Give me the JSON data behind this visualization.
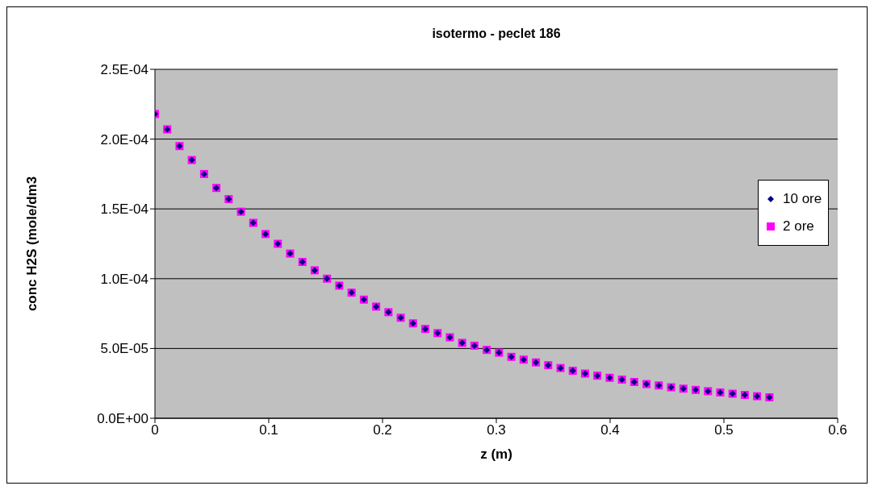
{
  "chart_data": {
    "type": "scatter",
    "title": "isotermo - peclet 186",
    "xlabel": "z (m)",
    "ylabel": "conc H2S (mole/dm3",
    "x": [
      0,
      0.0108,
      0.0216,
      0.0324,
      0.0432,
      0.054,
      0.0648,
      0.0756,
      0.0864,
      0.0972,
      0.108,
      0.1188,
      0.1296,
      0.1404,
      0.1512,
      0.162,
      0.1728,
      0.1836,
      0.1944,
      0.2052,
      0.216,
      0.2268,
      0.2376,
      0.2484,
      0.2592,
      0.27,
      0.2808,
      0.2916,
      0.3024,
      0.3132,
      0.324,
      0.3348,
      0.3456,
      0.3564,
      0.3672,
      0.378,
      0.3888,
      0.3996,
      0.4104,
      0.4212,
      0.432,
      0.4428,
      0.4536,
      0.4644,
      0.4752,
      0.486,
      0.4968,
      0.5076,
      0.5184,
      0.5292,
      0.54
    ],
    "series": [
      {
        "name": "10 ore",
        "color": "#000080",
        "marker": "diamond",
        "values": [
          0.000218,
          0.000207,
          0.000195,
          0.000185,
          0.000175,
          0.000165,
          0.000157,
          0.000148,
          0.00014,
          0.000132,
          0.000125,
          0.000118,
          0.000112,
          0.000106,
          0.0001,
          9.5e-05,
          9e-05,
          8.5e-05,
          8e-05,
          7.6e-05,
          7.2e-05,
          6.8e-05,
          6.4e-05,
          6.1e-05,
          5.8e-05,
          5.4e-05,
          5.2e-05,
          4.9e-05,
          4.7e-05,
          4.4e-05,
          4.2e-05,
          4e-05,
          3.8e-05,
          3.6e-05,
          3.4e-05,
          3.2e-05,
          3.05e-05,
          2.9e-05,
          2.77e-05,
          2.6e-05,
          2.45e-05,
          2.35e-05,
          2.22e-05,
          2.12e-05,
          2.03e-05,
          1.94e-05,
          1.85e-05,
          1.76e-05,
          1.67e-05,
          1.58e-05,
          1.5e-05
        ]
      },
      {
        "name": "2 ore",
        "color": "#ff00ff",
        "marker": "square",
        "values": [
          0.000218,
          0.000207,
          0.000195,
          0.000185,
          0.000175,
          0.000165,
          0.000157,
          0.000148,
          0.00014,
          0.000132,
          0.000125,
          0.000118,
          0.000112,
          0.000106,
          0.0001,
          9.5e-05,
          9e-05,
          8.5e-05,
          8e-05,
          7.6e-05,
          7.2e-05,
          6.8e-05,
          6.4e-05,
          6.1e-05,
          5.8e-05,
          5.4e-05,
          5.2e-05,
          4.9e-05,
          4.7e-05,
          4.4e-05,
          4.2e-05,
          4e-05,
          3.8e-05,
          3.6e-05,
          3.4e-05,
          3.2e-05,
          3.05e-05,
          2.9e-05,
          2.77e-05,
          2.6e-05,
          2.45e-05,
          2.35e-05,
          2.22e-05,
          2.12e-05,
          2.03e-05,
          1.94e-05,
          1.85e-05,
          1.76e-05,
          1.67e-05,
          1.58e-05,
          1.5e-05
        ]
      }
    ],
    "xlim": [
      0,
      0.6
    ],
    "xticks": [
      0,
      0.1,
      0.2,
      0.3,
      0.4,
      0.5,
      0.6
    ],
    "ylim": [
      0,
      0.00025
    ],
    "yticks": [
      {
        "value": 0,
        "label": "0.0E+00"
      },
      {
        "value": 5e-05,
        "label": "5.0E-05"
      },
      {
        "value": 0.0001,
        "label": "1.0E-04"
      },
      {
        "value": 0.00015,
        "label": "1.5E-04"
      },
      {
        "value": 0.0002,
        "label": "2.0E-04"
      },
      {
        "value": 0.00025,
        "label": "2.5E-04"
      }
    ],
    "grid": "y",
    "legend": "right"
  }
}
